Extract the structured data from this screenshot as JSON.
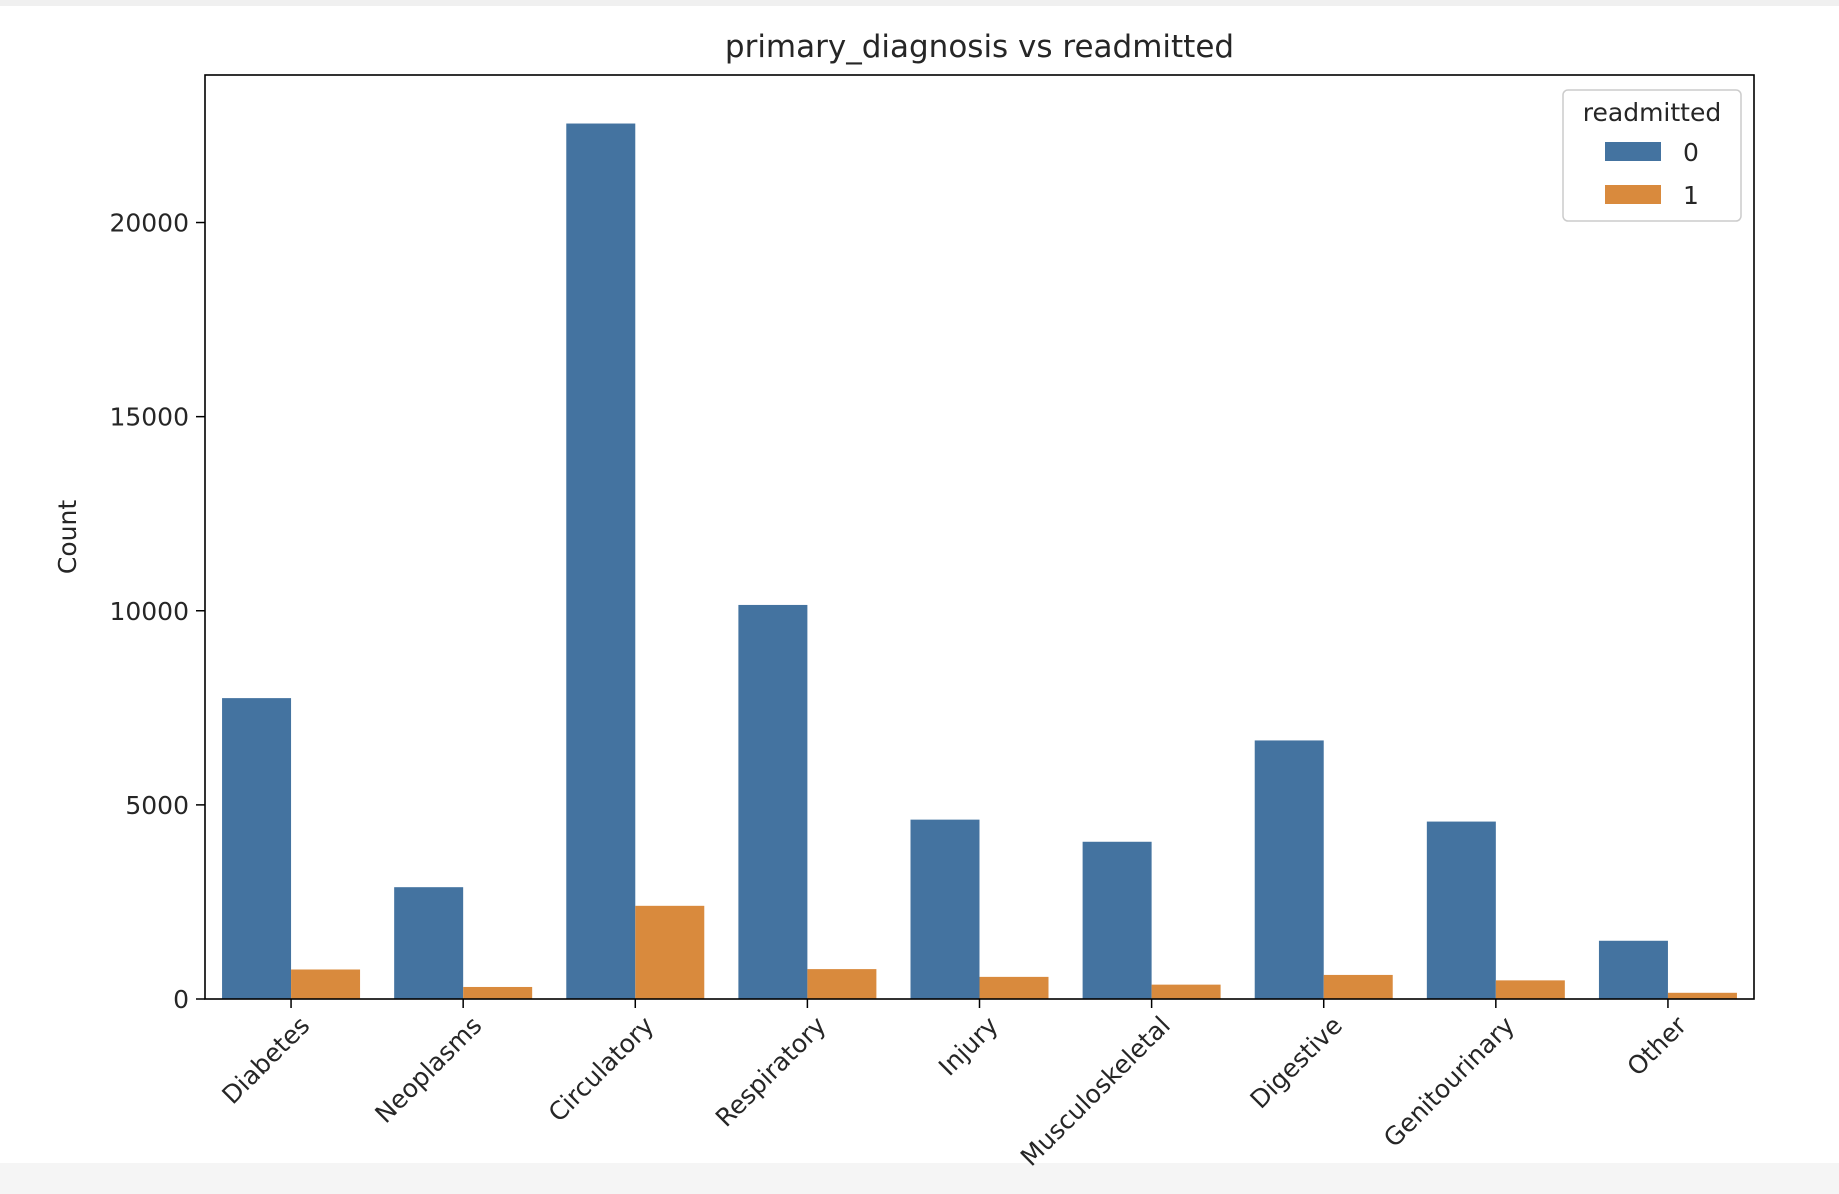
{
  "chart_data": {
    "type": "bar",
    "title": "primary_diagnosis vs readmitted",
    "xlabel": "",
    "ylabel": "Count",
    "categories": [
      "Diabetes",
      "Neoplasms",
      "Circulatory",
      "Respiratory",
      "Injury",
      "Musculoskeletal",
      "Digestive",
      "Genitourinary",
      "Other"
    ],
    "series": [
      {
        "name": "0",
        "color": "#4473a0",
        "values": [
          7750,
          2880,
          22550,
          10150,
          4620,
          4050,
          6660,
          4570,
          1500
        ]
      },
      {
        "name": "1",
        "color": "#d98a3d",
        "values": [
          760,
          310,
          2400,
          770,
          570,
          370,
          620,
          480,
          160
        ]
      }
    ],
    "ylim": [
      0,
      23800
    ],
    "yticks": [
      0,
      5000,
      10000,
      15000,
      20000
    ],
    "legend": {
      "title": "readmitted",
      "position": "top-right"
    },
    "grid": false
  }
}
